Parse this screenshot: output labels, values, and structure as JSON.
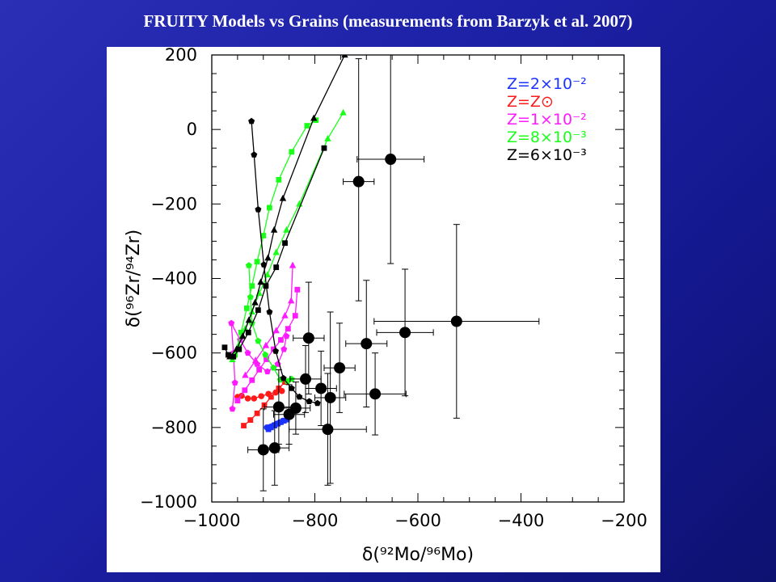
{
  "slide": {
    "title": "FRUITY Models vs Grains (measurements from Barzyk et al. 2007)"
  },
  "chart_data": {
    "type": "scatter",
    "xlabel": "δ(⁹²Mo/⁹⁶Mo)",
    "ylabel": "δ(⁹⁶Zr/⁹⁴Zr)",
    "xlim": [
      -1000,
      -200
    ],
    "ylim": [
      -1000,
      200
    ],
    "xticks": [
      -1000,
      -800,
      -600,
      -400,
      -200
    ],
    "yticks": [
      200,
      0,
      -200,
      -400,
      -600,
      -800,
      -1000
    ],
    "xtick_labels": [
      "−1000",
      "−800",
      "−600",
      "−400",
      "−200"
    ],
    "ytick_labels": [
      "200",
      "0",
      "−200",
      "−400",
      "−600",
      "−800",
      "−1000"
    ],
    "grid": false,
    "legend_position": "top-right",
    "legend": [
      {
        "label": "Z=2×10⁻²",
        "color": "#1a33ff"
      },
      {
        "label": "Z=Z⊙",
        "color": "#ff1a1a"
      },
      {
        "label": "Z=1×10⁻²",
        "color": "#ff1aff"
      },
      {
        "label": "Z=8×10⁻³",
        "color": "#1aff1a"
      },
      {
        "label": "Z=6×10⁻³",
        "color": "#000000"
      }
    ],
    "model_series": [
      {
        "name": "Z=2×10⁻²",
        "color": "#1a33ff",
        "marker": "square",
        "points": [
          [
            -890,
            -805
          ],
          [
            -885,
            -800
          ],
          [
            -878,
            -795
          ],
          [
            -872,
            -790
          ],
          [
            -866,
            -786
          ],
          [
            -860,
            -782
          ],
          [
            -854,
            -779
          ]
        ]
      },
      {
        "name": "Z=2×10⁻²",
        "color": "#1a33ff",
        "marker": "circle",
        "points": [
          [
            -893,
            -800
          ],
          [
            -886,
            -798
          ],
          [
            -880,
            -794
          ],
          [
            -874,
            -790
          ],
          [
            -868,
            -786
          ],
          [
            -862,
            -782
          ]
        ]
      },
      {
        "name": "Z=Z⊙",
        "color": "#ff1a1a",
        "marker": "square",
        "points": [
          [
            -938,
            -795
          ],
          [
            -925,
            -780
          ],
          [
            -912,
            -762
          ],
          [
            -898,
            -740
          ],
          [
            -885,
            -718
          ],
          [
            -870,
            -695
          ],
          [
            -858,
            -678
          ]
        ]
      },
      {
        "name": "Z=Z⊙",
        "color": "#ff1a1a",
        "marker": "circle",
        "points": [
          [
            -950,
            -718
          ],
          [
            -942,
            -715
          ],
          [
            -930,
            -722
          ],
          [
            -918,
            -722
          ],
          [
            -904,
            -716
          ],
          [
            -890,
            -710
          ],
          [
            -876,
            -706
          ],
          [
            -864,
            -702
          ]
        ]
      },
      {
        "name": "Z=1×10⁻²",
        "color": "#ff1aff",
        "marker": "square",
        "points": [
          [
            -950,
            -728
          ],
          [
            -936,
            -700
          ],
          [
            -922,
            -673
          ],
          [
            -908,
            -645
          ],
          [
            -894,
            -617
          ],
          [
            -880,
            -590
          ],
          [
            -866,
            -565
          ],
          [
            -852,
            -535
          ],
          [
            -838,
            -500
          ],
          [
            -834,
            -430
          ]
        ]
      },
      {
        "name": "Z=1×10⁻²",
        "color": "#ff1aff",
        "marker": "triangle",
        "points": [
          [
            -935,
            -660
          ],
          [
            -915,
            -620
          ],
          [
            -895,
            -580
          ],
          [
            -875,
            -540
          ],
          [
            -858,
            -500
          ],
          [
            -846,
            -460
          ],
          [
            -843,
            -365
          ]
        ]
      },
      {
        "name": "Z=1×10⁻²",
        "color": "#ff1aff",
        "marker": "pentagon",
        "points": [
          [
            -960,
            -750
          ],
          [
            -955,
            -680
          ],
          [
            -958,
            -600
          ],
          [
            -962,
            -520
          ],
          [
            -945,
            -565
          ],
          [
            -930,
            -600
          ],
          [
            -912,
            -630
          ],
          [
            -892,
            -650
          ],
          [
            -872,
            -630
          ],
          [
            -860,
            -590
          ],
          [
            -855,
            -555
          ]
        ]
      },
      {
        "name": "Z=8×10⁻³",
        "color": "#1aff1a",
        "marker": "square",
        "points": [
          [
            -955,
            -605
          ],
          [
            -943,
            -545
          ],
          [
            -932,
            -480
          ],
          [
            -922,
            -420
          ],
          [
            -912,
            -355
          ],
          [
            -900,
            -285
          ],
          [
            -888,
            -210
          ],
          [
            -870,
            -135
          ],
          [
            -845,
            -60
          ],
          [
            -815,
            10
          ],
          [
            -798,
            25
          ]
        ]
      },
      {
        "name": "Z=8×10⁻³",
        "color": "#1aff1a",
        "marker": "triangle",
        "points": [
          [
            -960,
            -618
          ],
          [
            -948,
            -580
          ],
          [
            -935,
            -535
          ],
          [
            -922,
            -490
          ],
          [
            -908,
            -440
          ],
          [
            -892,
            -390
          ],
          [
            -875,
            -330
          ],
          [
            -855,
            -270
          ],
          [
            -830,
            -200
          ],
          [
            -775,
            -25
          ],
          [
            -745,
            45
          ]
        ]
      },
      {
        "name": "Z=8×10⁻³",
        "color": "#1aff1a",
        "marker": "pentagon",
        "points": [
          [
            -928,
            -365
          ],
          [
            -925,
            -450
          ],
          [
            -922,
            -520
          ],
          [
            -910,
            -568
          ],
          [
            -896,
            -605
          ],
          [
            -880,
            -640
          ],
          [
            -867,
            -672
          ],
          [
            -853,
            -676
          ],
          [
            -845,
            -670
          ]
        ]
      },
      {
        "name": "Z=6×10⁻³",
        "color": "#000000",
        "marker": "pentagon",
        "points": [
          [
            -923,
            22
          ],
          [
            -918,
            -68
          ],
          [
            -910,
            -215
          ],
          [
            -899,
            -363
          ],
          [
            -888,
            -490
          ],
          [
            -876,
            -595
          ],
          [
            -861,
            -668
          ],
          [
            -845,
            -695
          ],
          [
            -830,
            -718
          ],
          [
            -811,
            -730
          ],
          [
            -795,
            -735
          ]
        ]
      },
      {
        "name": "Z=6×10⁻³",
        "color": "#000000",
        "marker": "square",
        "points": [
          [
            -975,
            -585
          ],
          [
            -968,
            -605
          ],
          [
            -958,
            -610
          ],
          [
            -947,
            -590
          ],
          [
            -929,
            -545
          ],
          [
            -910,
            -485
          ],
          [
            -895,
            -420
          ],
          [
            -875,
            -370
          ],
          [
            -858,
            -305
          ],
          [
            -782,
            -50
          ]
        ]
      },
      {
        "name": "Z=6×10⁻³",
        "color": "#000000",
        "marker": "triangle",
        "points": [
          [
            -965,
            -610
          ],
          [
            -952,
            -590
          ],
          [
            -940,
            -555
          ],
          [
            -928,
            -512
          ],
          [
            -916,
            -465
          ],
          [
            -905,
            -410
          ],
          [
            -891,
            -345
          ],
          [
            -879,
            -270
          ],
          [
            -862,
            -185
          ],
          [
            -802,
            30
          ],
          [
            -742,
            200
          ]
        ]
      }
    ],
    "grain_data": [
      {
        "x": -653,
        "y": -80,
        "xerr": 65,
        "yerr": [
          300,
          280
        ]
      },
      {
        "x": -715,
        "y": -140,
        "xerr": 30,
        "yerr": [
          330,
          320
        ]
      },
      {
        "x": -525,
        "y": -515,
        "xerr": 160,
        "yerr": [
          260,
          260
        ]
      },
      {
        "x": -625,
        "y": -545,
        "xerr": 55,
        "yerr": [
          170,
          170
        ]
      },
      {
        "x": -700,
        "y": -575,
        "xerr": 40,
        "yerr": [
          170,
          170
        ]
      },
      {
        "x": -812,
        "y": -560,
        "xerr": 30,
        "yerr": [
          150,
          150
        ]
      },
      {
        "x": -752,
        "y": -640,
        "xerr": 30,
        "yerr": [
          120,
          120
        ]
      },
      {
        "x": -683,
        "y": -710,
        "xerr": 60,
        "yerr": [
          110,
          110
        ]
      },
      {
        "x": -818,
        "y": -670,
        "xerr": 30,
        "yerr": [
          90,
          90
        ]
      },
      {
        "x": -788,
        "y": -695,
        "xerr": 30,
        "yerr": [
          100,
          100
        ]
      },
      {
        "x": -770,
        "y": -720,
        "xerr": 30,
        "yerr": [
          230,
          230
        ]
      },
      {
        "x": -837,
        "y": -748,
        "xerr": 28,
        "yerr": [
          70,
          70
        ]
      },
      {
        "x": -850,
        "y": -765,
        "xerr": 30,
        "yerr": [
          80,
          80
        ]
      },
      {
        "x": -870,
        "y": -745,
        "xerr": 28,
        "yerr": [
          100,
          100
        ]
      },
      {
        "x": -775,
        "y": -805,
        "xerr": 75,
        "yerr": [
          150,
          150
        ]
      },
      {
        "x": -878,
        "y": -855,
        "xerr": 28,
        "yerr": [
          100,
          100
        ]
      },
      {
        "x": -900,
        "y": -860,
        "xerr": 30,
        "yerr": [
          110,
          110
        ]
      }
    ]
  }
}
